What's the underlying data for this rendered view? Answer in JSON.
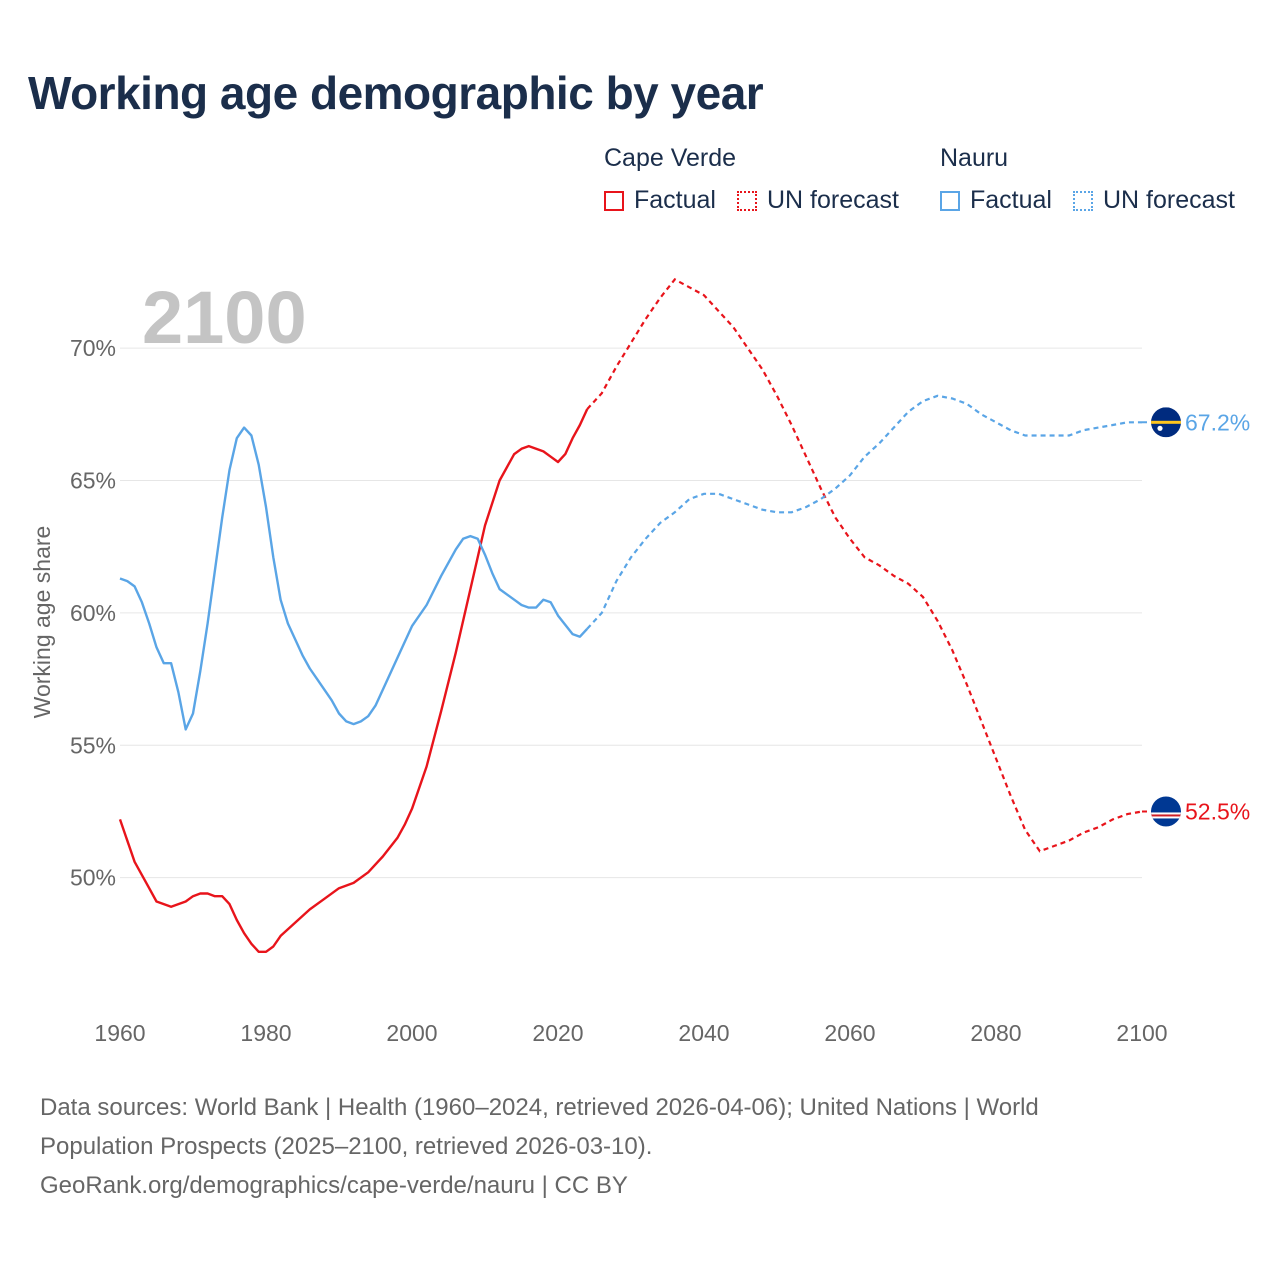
{
  "title": "Working age demographic by year",
  "legend": {
    "groups": [
      {
        "country": "Cape Verde",
        "factual": "Factual",
        "forecast": "UN forecast",
        "color": "#e8141b"
      },
      {
        "country": "Nauru",
        "factual": "Factual",
        "forecast": "UN forecast",
        "color": "#5aa5e6"
      }
    ]
  },
  "year_watermark": "2100",
  "sources": {
    "line1": "Data sources: World Bank | Health (1960–2024, retrieved 2026-04-06); United Nations | World",
    "line2": "Population Prospects (2025–2100, retrieved 2026-03-10).",
    "line3": "GeoRank.org/demographics/cape-verde/nauru | CC BY"
  },
  "chart_data": {
    "type": "line",
    "title": "Working age demographic by year",
    "xlabel": "",
    "ylabel": "Working age share",
    "xlim": [
      1960,
      2100
    ],
    "ylim": [
      45,
      72.5
    ],
    "x_ticks": [
      1960,
      1980,
      2000,
      2020,
      2040,
      2060,
      2080,
      2100
    ],
    "x_tick_labels": [
      "1960",
      "1980",
      "2000",
      "2020",
      "2040",
      "2060",
      "2080",
      "2100"
    ],
    "y_ticks": [
      50,
      55,
      60,
      65,
      70
    ],
    "y_tick_labels": [
      "50%",
      "55%",
      "60%",
      "65%",
      "70%"
    ],
    "grid": true,
    "factual_end_year": 2024,
    "series": [
      {
        "name": "Cape Verde",
        "color": "#e8141b",
        "end_label": "52.5%",
        "flag_icon": "cape-verde-flag-icon",
        "points": [
          [
            1960,
            52.2
          ],
          [
            1962,
            50.6
          ],
          [
            1964,
            49.6
          ],
          [
            1965,
            49.1
          ],
          [
            1967,
            48.9
          ],
          [
            1969,
            49.1
          ],
          [
            1970,
            49.3
          ],
          [
            1971,
            49.4
          ],
          [
            1972,
            49.4
          ],
          [
            1973,
            49.3
          ],
          [
            1974,
            49.3
          ],
          [
            1975,
            49.0
          ],
          [
            1976,
            48.4
          ],
          [
            1977,
            47.9
          ],
          [
            1978,
            47.5
          ],
          [
            1979,
            47.2
          ],
          [
            1980,
            47.2
          ],
          [
            1981,
            47.4
          ],
          [
            1982,
            47.8
          ],
          [
            1984,
            48.3
          ],
          [
            1986,
            48.8
          ],
          [
            1988,
            49.2
          ],
          [
            1990,
            49.6
          ],
          [
            1992,
            49.8
          ],
          [
            1994,
            50.2
          ],
          [
            1996,
            50.8
          ],
          [
            1998,
            51.5
          ],
          [
            1999,
            52.0
          ],
          [
            2000,
            52.6
          ],
          [
            2002,
            54.2
          ],
          [
            2004,
            56.3
          ],
          [
            2006,
            58.5
          ],
          [
            2008,
            60.9
          ],
          [
            2010,
            63.3
          ],
          [
            2012,
            65.0
          ],
          [
            2014,
            66.0
          ],
          [
            2015,
            66.2
          ],
          [
            2016,
            66.3
          ],
          [
            2017,
            66.2
          ],
          [
            2018,
            66.1
          ],
          [
            2019,
            65.9
          ],
          [
            2020,
            65.7
          ],
          [
            2021,
            66.0
          ],
          [
            2022,
            66.6
          ],
          [
            2023,
            67.1
          ],
          [
            2024,
            67.7
          ],
          [
            2026,
            68.3
          ],
          [
            2028,
            69.3
          ],
          [
            2030,
            70.2
          ],
          [
            2032,
            71.1
          ],
          [
            2034,
            71.9
          ],
          [
            2036,
            72.6
          ],
          [
            2038,
            72.3
          ],
          [
            2040,
            72.0
          ],
          [
            2042,
            71.4
          ],
          [
            2044,
            70.8
          ],
          [
            2046,
            70.0
          ],
          [
            2048,
            69.2
          ],
          [
            2050,
            68.2
          ],
          [
            2052,
            67.1
          ],
          [
            2054,
            65.9
          ],
          [
            2056,
            64.7
          ],
          [
            2058,
            63.6
          ],
          [
            2060,
            62.8
          ],
          [
            2062,
            62.1
          ],
          [
            2064,
            61.8
          ],
          [
            2066,
            61.4
          ],
          [
            2068,
            61.1
          ],
          [
            2070,
            60.6
          ],
          [
            2072,
            59.7
          ],
          [
            2074,
            58.6
          ],
          [
            2076,
            57.3
          ],
          [
            2078,
            55.9
          ],
          [
            2080,
            54.5
          ],
          [
            2082,
            53.1
          ],
          [
            2084,
            51.8
          ],
          [
            2086,
            51.0
          ],
          [
            2088,
            51.2
          ],
          [
            2090,
            51.4
          ],
          [
            2092,
            51.7
          ],
          [
            2094,
            51.9
          ],
          [
            2096,
            52.2
          ],
          [
            2098,
            52.4
          ],
          [
            2100,
            52.5
          ]
        ]
      },
      {
        "name": "Nauru",
        "color": "#5aa5e6",
        "end_label": "67.2%",
        "flag_icon": "nauru-flag-icon",
        "points": [
          [
            1960,
            61.3
          ],
          [
            1961,
            61.2
          ],
          [
            1962,
            61.0
          ],
          [
            1963,
            60.4
          ],
          [
            1964,
            59.6
          ],
          [
            1965,
            58.7
          ],
          [
            1966,
            58.1
          ],
          [
            1967,
            58.1
          ],
          [
            1968,
            57.0
          ],
          [
            1969,
            55.6
          ],
          [
            1970,
            56.2
          ],
          [
            1971,
            57.8
          ],
          [
            1972,
            59.6
          ],
          [
            1973,
            61.6
          ],
          [
            1974,
            63.6
          ],
          [
            1975,
            65.4
          ],
          [
            1976,
            66.6
          ],
          [
            1977,
            67.0
          ],
          [
            1978,
            66.7
          ],
          [
            1979,
            65.6
          ],
          [
            1980,
            64.0
          ],
          [
            1981,
            62.1
          ],
          [
            1982,
            60.5
          ],
          [
            1983,
            59.6
          ],
          [
            1984,
            59.0
          ],
          [
            1985,
            58.4
          ],
          [
            1986,
            57.9
          ],
          [
            1987,
            57.5
          ],
          [
            1988,
            57.1
          ],
          [
            1989,
            56.7
          ],
          [
            1990,
            56.2
          ],
          [
            1991,
            55.9
          ],
          [
            1992,
            55.8
          ],
          [
            1993,
            55.9
          ],
          [
            1994,
            56.1
          ],
          [
            1995,
            56.5
          ],
          [
            1996,
            57.1
          ],
          [
            1998,
            58.3
          ],
          [
            2000,
            59.5
          ],
          [
            2002,
            60.3
          ],
          [
            2004,
            61.4
          ],
          [
            2006,
            62.4
          ],
          [
            2007,
            62.8
          ],
          [
            2008,
            62.9
          ],
          [
            2009,
            62.8
          ],
          [
            2010,
            62.2
          ],
          [
            2011,
            61.5
          ],
          [
            2012,
            60.9
          ],
          [
            2014,
            60.5
          ],
          [
            2015,
            60.3
          ],
          [
            2016,
            60.2
          ],
          [
            2017,
            60.2
          ],
          [
            2018,
            60.5
          ],
          [
            2019,
            60.4
          ],
          [
            2020,
            59.9
          ],
          [
            2022,
            59.2
          ],
          [
            2023,
            59.1
          ],
          [
            2024,
            59.4
          ],
          [
            2026,
            60.0
          ],
          [
            2028,
            61.2
          ],
          [
            2030,
            62.1
          ],
          [
            2032,
            62.8
          ],
          [
            2034,
            63.4
          ],
          [
            2036,
            63.8
          ],
          [
            2038,
            64.3
          ],
          [
            2040,
            64.5
          ],
          [
            2042,
            64.5
          ],
          [
            2044,
            64.3
          ],
          [
            2046,
            64.1
          ],
          [
            2048,
            63.9
          ],
          [
            2050,
            63.8
          ],
          [
            2052,
            63.8
          ],
          [
            2054,
            64.0
          ],
          [
            2056,
            64.3
          ],
          [
            2058,
            64.7
          ],
          [
            2060,
            65.2
          ],
          [
            2062,
            65.9
          ],
          [
            2064,
            66.4
          ],
          [
            2066,
            67.0
          ],
          [
            2068,
            67.6
          ],
          [
            2070,
            68.0
          ],
          [
            2072,
            68.2
          ],
          [
            2074,
            68.1
          ],
          [
            2076,
            67.9
          ],
          [
            2078,
            67.5
          ],
          [
            2080,
            67.2
          ],
          [
            2082,
            66.9
          ],
          [
            2084,
            66.7
          ],
          [
            2086,
            66.7
          ],
          [
            2088,
            66.7
          ],
          [
            2090,
            66.7
          ],
          [
            2092,
            66.9
          ],
          [
            2094,
            67.0
          ],
          [
            2096,
            67.1
          ],
          [
            2098,
            67.2
          ],
          [
            2100,
            67.2
          ]
        ]
      }
    ]
  }
}
